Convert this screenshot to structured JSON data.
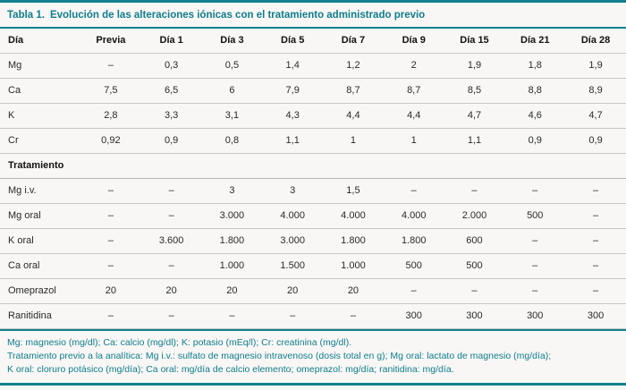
{
  "colors": {
    "accent_teal": "#12808e",
    "separator_gray": "#c7c7c4",
    "page_background": "#f8f7f5"
  },
  "table": {
    "label": "Tabla 1.",
    "title": "Evolución de las alteraciones iónicas con el tratamiento administrado previo",
    "columns": [
      "Día",
      "Previa",
      "Día 1",
      "Día 3",
      "Día 5",
      "Día 7",
      "Día 9",
      "Día 15",
      "Día 21",
      "Día 28"
    ],
    "ion_rows": [
      {
        "label": "Mg",
        "values": [
          "–",
          "0,3",
          "0,5",
          "1,4",
          "1,2",
          "2",
          "1,9",
          "1,8",
          "1,9"
        ]
      },
      {
        "label": "Ca",
        "values": [
          "7,5",
          "6,5",
          "6",
          "7,9",
          "8,7",
          "8,7",
          "8,5",
          "8,8",
          "8,9"
        ]
      },
      {
        "label": "K",
        "values": [
          "2,8",
          "3,3",
          "3,1",
          "4,3",
          "4,4",
          "4,4",
          "4,7",
          "4,6",
          "4,7"
        ]
      },
      {
        "label": "Cr",
        "values": [
          "0,92",
          "0,9",
          "0,8",
          "1,1",
          "1",
          "1",
          "1,1",
          "0,9",
          "0,9"
        ]
      }
    ],
    "treatment_header": "Tratamiento",
    "treatment_rows": [
      {
        "label": "Mg i.v.",
        "values": [
          "–",
          "–",
          "3",
          "3",
          "1,5",
          "–",
          "–",
          "–",
          "–"
        ]
      },
      {
        "label": "Mg oral",
        "values": [
          "–",
          "–",
          "3.000",
          "4.000",
          "4.000",
          "4.000",
          "2.000",
          "500",
          "–"
        ]
      },
      {
        "label": "K oral",
        "values": [
          "–",
          "3.600",
          "1.800",
          "3.000",
          "1.800",
          "1.800",
          "600",
          "–",
          "–"
        ]
      },
      {
        "label": "Ca oral",
        "values": [
          "–",
          "–",
          "1.000",
          "1.500",
          "1.000",
          "500",
          "500",
          "–",
          "–"
        ]
      },
      {
        "label": "Omeprazol",
        "values": [
          "20",
          "20",
          "20",
          "20",
          "20",
          "–",
          "–",
          "–",
          "–"
        ]
      },
      {
        "label": "Ranitidina",
        "values": [
          "–",
          "–",
          "–",
          "–",
          "–",
          "300",
          "300",
          "300",
          "300"
        ]
      }
    ],
    "footnotes": [
      "Mg: magnesio (mg/dl); Ca: calcio (mg/dl); K: potasio (mEq/l); Cr: creatinina (mg/dl).",
      "Tratamiento previo a la analítica: Mg i.v.: sulfato de magnesio intravenoso (dosis total en g); Mg oral: lactato de magnesio (mg/día);",
      "K oral: cloruro potásico (mg/día); Ca oral: mg/día de calcio elemento; omeprazol: mg/día; ranitidina: mg/día."
    ]
  }
}
